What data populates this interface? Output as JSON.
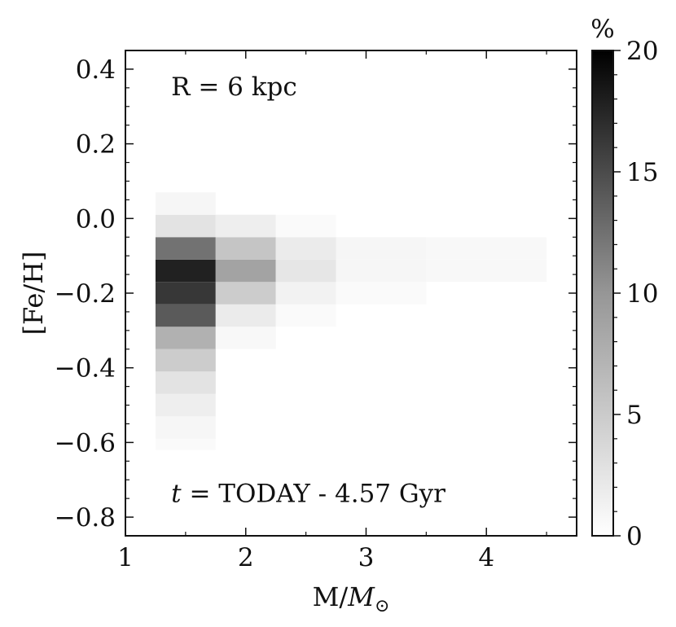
{
  "chart_data": {
    "type": "heatmap",
    "xlabel": {
      "prefix": "M/",
      "symbol": "M",
      "subscript": "⊙"
    },
    "ylabel": "[Fe/H]",
    "xlim": [
      1.0,
      4.75
    ],
    "ylim": [
      -0.85,
      0.45
    ],
    "x_ticks": [
      {
        "value": 1,
        "label": "1"
      },
      {
        "value": 2,
        "label": "2"
      },
      {
        "value": 3,
        "label": "3"
      },
      {
        "value": 4,
        "label": "4"
      }
    ],
    "x_minor_step": 0.5,
    "y_ticks": [
      {
        "value": 0.4,
        "label": "0.4"
      },
      {
        "value": 0.2,
        "label": "0.2"
      },
      {
        "value": 0.0,
        "label": "0.0"
      },
      {
        "value": -0.2,
        "label": "−0.2"
      },
      {
        "value": -0.4,
        "label": "−0.4"
      },
      {
        "value": -0.6,
        "label": "−0.6"
      },
      {
        "value": -0.8,
        "label": "−0.8"
      }
    ],
    "y_minor_step": 0.05,
    "annotations": [
      {
        "id": "radius",
        "text": "R = 6 kpc",
        "x": 1.38,
        "y": 0.33
      },
      {
        "id": "time",
        "italic_prefix": "t",
        "text": " = TODAY - 4.57 Gyr",
        "x": 1.38,
        "y": -0.76
      }
    ],
    "colorbar": {
      "label": "%",
      "min": 0,
      "max": 20,
      "colormap": "Greys",
      "ticks": [
        {
          "value": 0,
          "label": "0"
        },
        {
          "value": 5,
          "label": "5"
        },
        {
          "value": 10,
          "label": "10"
        },
        {
          "value": 15,
          "label": "15"
        },
        {
          "value": 20,
          "label": "20"
        }
      ],
      "minor_step": 1
    },
    "cells": [
      {
        "x0": 1.25,
        "x1": 1.75,
        "y0": -0.62,
        "y1": -0.59,
        "value": 0.2
      },
      {
        "x0": 1.25,
        "x1": 1.75,
        "y0": -0.59,
        "y1": -0.53,
        "value": 0.4
      },
      {
        "x0": 1.25,
        "x1": 1.75,
        "y0": -0.53,
        "y1": -0.47,
        "value": 0.8
      },
      {
        "x0": 1.25,
        "x1": 1.75,
        "y0": -0.47,
        "y1": -0.41,
        "value": 1.5
      },
      {
        "x0": 1.25,
        "x1": 1.75,
        "y0": -0.41,
        "y1": -0.35,
        "value": 3.0
      },
      {
        "x0": 1.25,
        "x1": 1.75,
        "y0": -0.35,
        "y1": -0.29,
        "value": 5.0
      },
      {
        "x0": 1.25,
        "x1": 1.75,
        "y0": -0.29,
        "y1": -0.23,
        "value": 12.0
      },
      {
        "x0": 1.25,
        "x1": 1.75,
        "y0": -0.23,
        "y1": -0.17,
        "value": 15.0
      },
      {
        "x0": 1.25,
        "x1": 1.75,
        "y0": -0.17,
        "y1": -0.11,
        "value": 17.0
      },
      {
        "x0": 1.25,
        "x1": 1.75,
        "y0": -0.11,
        "y1": -0.05,
        "value": 10.0
      },
      {
        "x0": 1.25,
        "x1": 1.75,
        "y0": -0.05,
        "y1": 0.01,
        "value": 1.5
      },
      {
        "x0": 1.25,
        "x1": 1.75,
        "y0": 0.01,
        "y1": 0.07,
        "value": 0.4
      },
      {
        "x0": 1.75,
        "x1": 2.25,
        "y0": -0.35,
        "y1": -0.29,
        "value": 0.3
      },
      {
        "x0": 1.75,
        "x1": 2.25,
        "y0": -0.29,
        "y1": -0.23,
        "value": 1.0
      },
      {
        "x0": 1.75,
        "x1": 2.25,
        "y0": -0.23,
        "y1": -0.17,
        "value": 3.0
      },
      {
        "x0": 1.75,
        "x1": 2.25,
        "y0": -0.17,
        "y1": -0.11,
        "value": 6.0
      },
      {
        "x0": 1.75,
        "x1": 2.25,
        "y0": -0.11,
        "y1": -0.05,
        "value": 3.5
      },
      {
        "x0": 1.75,
        "x1": 2.25,
        "y0": -0.05,
        "y1": 0.01,
        "value": 0.8
      },
      {
        "x0": 2.25,
        "x1": 2.75,
        "y0": -0.29,
        "y1": -0.23,
        "value": 0.2
      },
      {
        "x0": 2.25,
        "x1": 2.75,
        "y0": -0.23,
        "y1": -0.17,
        "value": 0.6
      },
      {
        "x0": 2.25,
        "x1": 2.75,
        "y0": -0.17,
        "y1": -0.11,
        "value": 1.3
      },
      {
        "x0": 2.25,
        "x1": 2.75,
        "y0": -0.11,
        "y1": -0.05,
        "value": 1.0
      },
      {
        "x0": 2.25,
        "x1": 2.75,
        "y0": -0.05,
        "y1": 0.01,
        "value": 0.2
      },
      {
        "x0": 2.75,
        "x1": 3.5,
        "y0": -0.23,
        "y1": -0.17,
        "value": 0.2
      },
      {
        "x0": 2.75,
        "x1": 3.5,
        "y0": -0.17,
        "y1": -0.11,
        "value": 0.4
      },
      {
        "x0": 2.75,
        "x1": 3.5,
        "y0": -0.11,
        "y1": -0.05,
        "value": 0.4
      },
      {
        "x0": 3.5,
        "x1": 4.5,
        "y0": -0.17,
        "y1": -0.11,
        "value": 0.3
      },
      {
        "x0": 3.5,
        "x1": 4.5,
        "y0": -0.11,
        "y1": -0.05,
        "value": 0.3
      }
    ]
  }
}
